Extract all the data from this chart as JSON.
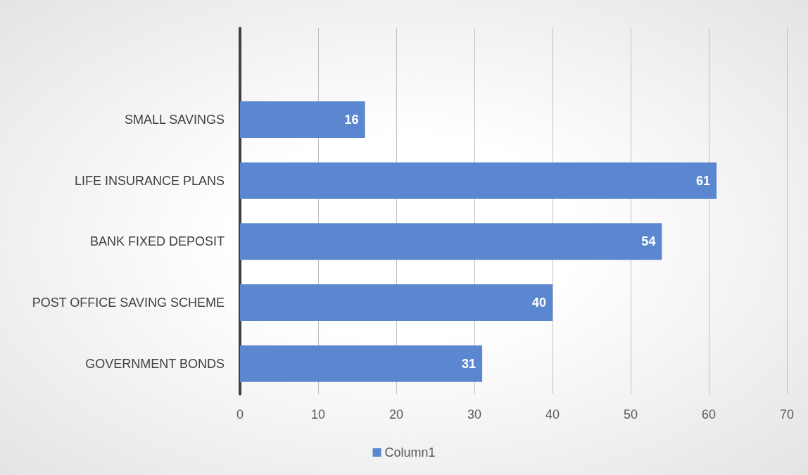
{
  "chart_data": {
    "type": "bar",
    "orientation": "horizontal",
    "categories": [
      null,
      "SMALL SAVINGS",
      "LIFE INSURANCE PLANS",
      "BANK FIXED DEPOSIT",
      "POST OFFICE SAVING SCHEME",
      "GOVERNMENT BONDS"
    ],
    "series": [
      {
        "name": "Column1",
        "color": "#5b87d0",
        "values": [
          null,
          16,
          61,
          54,
          40,
          31
        ]
      }
    ],
    "xlim": [
      0,
      70
    ],
    "xticks": [
      0,
      10,
      20,
      30,
      40,
      50,
      60,
      70
    ],
    "grid": "x",
    "legend": "bottom",
    "data_labels": true
  }
}
